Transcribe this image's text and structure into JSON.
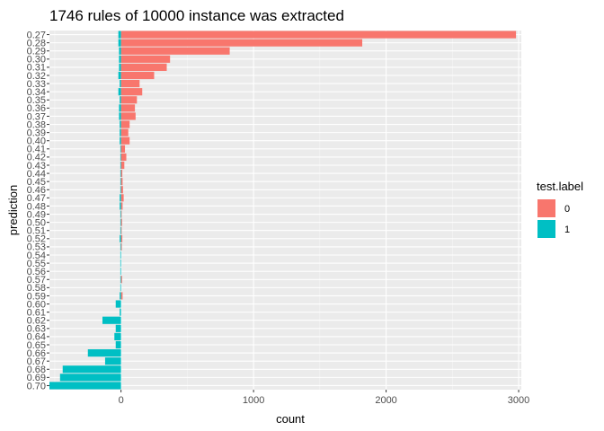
{
  "chart_data": {
    "type": "bar",
    "orientation": "horizontal",
    "title": "1746 rules of 10000 instance was extracted",
    "xlabel": "count",
    "ylabel": "prediction",
    "xlim": [
      -540,
      3020
    ],
    "x_ticks": [
      0,
      1000,
      2000,
      3000
    ],
    "legend": {
      "title": "test.label",
      "placement": "right"
    },
    "categories": [
      "0.27",
      "0.28",
      "0.29",
      "0.30",
      "0.31",
      "0.32",
      "0.33",
      "0.34",
      "0.35",
      "0.36",
      "0.37",
      "0.38",
      "0.39",
      "0.40",
      "0.41",
      "0.42",
      "0.43",
      "0.44",
      "0.45",
      "0.46",
      "0.47",
      "0.48",
      "0.49",
      "0.50",
      "0.51",
      "0.52",
      "0.53",
      "0.54",
      "0.55",
      "0.56",
      "0.57",
      "0.58",
      "0.59",
      "0.60",
      "0.61",
      "0.62",
      "0.63",
      "0.64",
      "0.65",
      "0.66",
      "0.67",
      "0.68",
      "0.69",
      "0.70"
    ],
    "series": [
      {
        "name": "0",
        "color": "#F8766D",
        "values": [
          2980,
          1820,
          820,
          370,
          345,
          250,
          140,
          160,
          120,
          105,
          110,
          65,
          55,
          65,
          30,
          40,
          25,
          10,
          12,
          15,
          20,
          12,
          5,
          8,
          5,
          10,
          6,
          0,
          0,
          0,
          8,
          0,
          12,
          0,
          0,
          0,
          0,
          0,
          0,
          0,
          0,
          0,
          0,
          0
        ]
      },
      {
        "name": "1",
        "color": "#00BFC4",
        "values": [
          -20,
          -20,
          -15,
          -15,
          -15,
          -20,
          -10,
          -20,
          -10,
          -15,
          -15,
          -10,
          -10,
          -10,
          -5,
          -5,
          -5,
          -5,
          -5,
          -5,
          -10,
          -10,
          -5,
          -5,
          -5,
          -10,
          -5,
          -5,
          -5,
          -5,
          -5,
          -5,
          -10,
          -40,
          -10,
          -140,
          -40,
          -50,
          -40,
          -250,
          -120,
          -440,
          -460,
          -540
        ]
      }
    ]
  }
}
